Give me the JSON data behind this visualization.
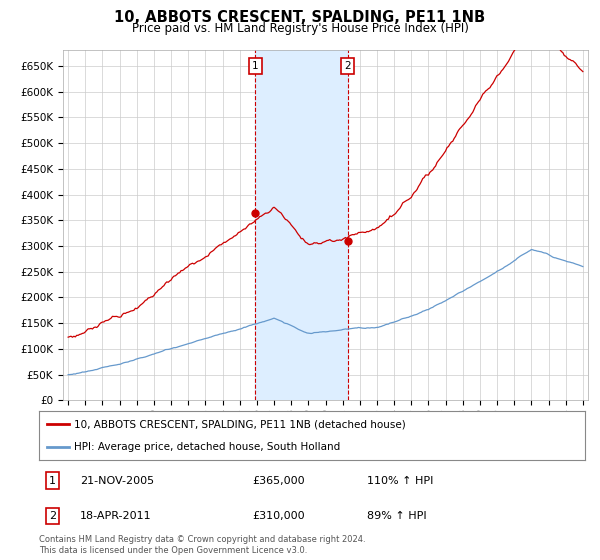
{
  "title": "10, ABBOTS CRESCENT, SPALDING, PE11 1NB",
  "subtitle": "Price paid vs. HM Land Registry's House Price Index (HPI)",
  "ylim": [
    0,
    680000
  ],
  "yticks": [
    0,
    50000,
    100000,
    150000,
    200000,
    250000,
    300000,
    350000,
    400000,
    450000,
    500000,
    550000,
    600000,
    650000
  ],
  "sale1_date": 2005.896,
  "sale1_price": 365000,
  "sale2_date": 2011.3,
  "sale2_price": 310000,
  "legend_line1": "10, ABBOTS CRESCENT, SPALDING, PE11 1NB (detached house)",
  "legend_line2": "HPI: Average price, detached house, South Holland",
  "footer": "Contains HM Land Registry data © Crown copyright and database right 2024.\nThis data is licensed under the Open Government Licence v3.0.",
  "red_color": "#cc0000",
  "blue_color": "#6699cc",
  "shade_color": "#ddeeff",
  "background_color": "#ffffff",
  "grid_color": "#cccccc"
}
